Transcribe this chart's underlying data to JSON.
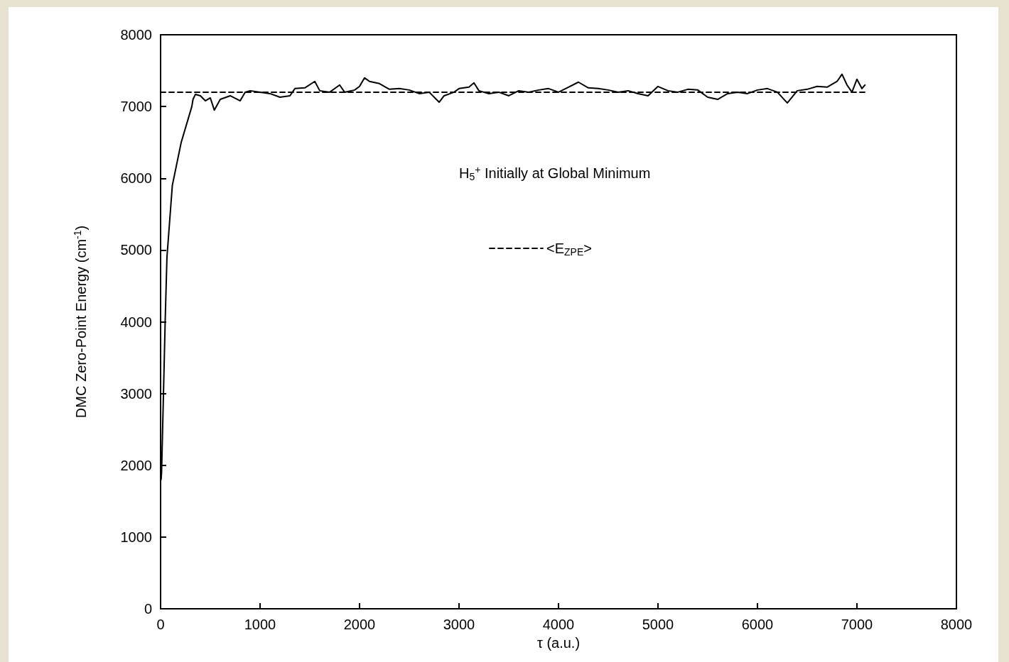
{
  "chart_data": {
    "type": "line",
    "xlabel": "τ (a.u.)",
    "ylabel": "DMC Zero-Point Energy (cm$^{-1}$)",
    "annotations": [
      "H$_{5}$$^{+}$ Initially at Global Minimum"
    ],
    "xlim": [
      0,
      8000
    ],
    "xticks": [
      0,
      1000,
      2000,
      3000,
      4000,
      5000,
      6000,
      7000,
      8000
    ],
    "ylim": [
      0,
      8000
    ],
    "yticks": [
      0,
      1000,
      2000,
      3000,
      4000,
      5000,
      6000,
      7000,
      8000
    ],
    "grid": false,
    "legend": "top",
    "marker": "none",
    "series": [
      {
        "color": "#000000",
        "line_style": "solid",
        "x": [
          5,
          10,
          29,
          46,
          64,
          118,
          207,
          314,
          326,
          350,
          400,
          450,
          500,
          540,
          600,
          700,
          800,
          850,
          900,
          1000,
          1100,
          1200,
          1300,
          1350,
          1450,
          1550,
          1600,
          1700,
          1800,
          1850,
          1950,
          2000,
          2050,
          2100,
          2200,
          2300,
          2400,
          2500,
          2600,
          2700,
          2800,
          2850,
          2950,
          3000,
          3100,
          3150,
          3200,
          3300,
          3400,
          3500,
          3600,
          3700,
          3800,
          3900,
          4000,
          4100,
          4200,
          4300,
          4400,
          4500,
          4600,
          4700,
          4800,
          4900,
          5000,
          5100,
          5200,
          5300,
          5400,
          5500,
          5600,
          5700,
          5800,
          5900,
          6000,
          6100,
          6200,
          6300,
          6400,
          6500,
          6600,
          6700,
          6800,
          6850,
          6900,
          6950,
          7000,
          7050,
          7080
        ],
        "values": [
          1800,
          1900,
          3000,
          4000,
          4900,
          5900,
          6500,
          7000,
          7100,
          7170,
          7150,
          7080,
          7120,
          6950,
          7100,
          7150,
          7080,
          7200,
          7220,
          7200,
          7180,
          7130,
          7150,
          7250,
          7260,
          7350,
          7220,
          7200,
          7300,
          7200,
          7230,
          7280,
          7400,
          7350,
          7320,
          7240,
          7250,
          7230,
          7180,
          7200,
          7060,
          7150,
          7200,
          7250,
          7270,
          7330,
          7220,
          7180,
          7200,
          7150,
          7220,
          7200,
          7230,
          7250,
          7200,
          7270,
          7340,
          7260,
          7250,
          7230,
          7200,
          7220,
          7180,
          7150,
          7280,
          7220,
          7200,
          7240,
          7230,
          7130,
          7100,
          7180,
          7200,
          7180,
          7230,
          7250,
          7200,
          7050,
          7220,
          7240,
          7280,
          7270,
          7350,
          7450,
          7300,
          7200,
          7380,
          7250,
          7300
        ]
      },
      {
        "name": "<E$_{ZPE}$>",
        "color": "#000000",
        "line_style": "dashed",
        "x": [
          0,
          7090
        ],
        "values": [
          7200,
          7200
        ]
      }
    ]
  }
}
